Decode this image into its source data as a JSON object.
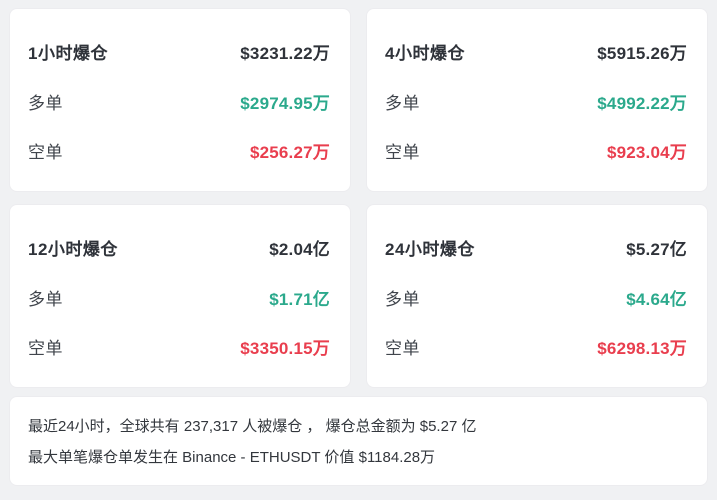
{
  "theme": {
    "page_background": "#f0f1f3",
    "card_background": "#ffffff",
    "text_dark": "#2f333a",
    "label_color": "#40454c",
    "long_color_green": "#2ba98c",
    "short_color_red": "#e93e4e"
  },
  "cards": [
    {
      "title": "1小时爆仓",
      "total": "$3231.22万",
      "long_label": "多单",
      "long_value": "$2974.95万",
      "short_label": "空单",
      "short_value": "$256.27万"
    },
    {
      "title": "4小时爆仓",
      "total": "$5915.26万",
      "long_label": "多单",
      "long_value": "$4992.22万",
      "short_label": "空单",
      "short_value": "$923.04万"
    },
    {
      "title": "12小时爆仓",
      "total": "$2.04亿",
      "long_label": "多单",
      "long_value": "$1.71亿",
      "short_label": "空单",
      "short_value": "$3350.15万"
    },
    {
      "title": "24小时爆仓",
      "total": "$5.27亿",
      "long_label": "多单",
      "long_value": "$4.64亿",
      "short_label": "空单",
      "short_value": "$6298.13万"
    }
  ],
  "summary": {
    "line1": "最近24小时，全球共有 237,317 人被爆仓 ， 爆仓总金额为 $5.27 亿",
    "line2": "最大单笔爆仓单发生在 Binance - ETHUSDT 价值 $1184.28万"
  }
}
